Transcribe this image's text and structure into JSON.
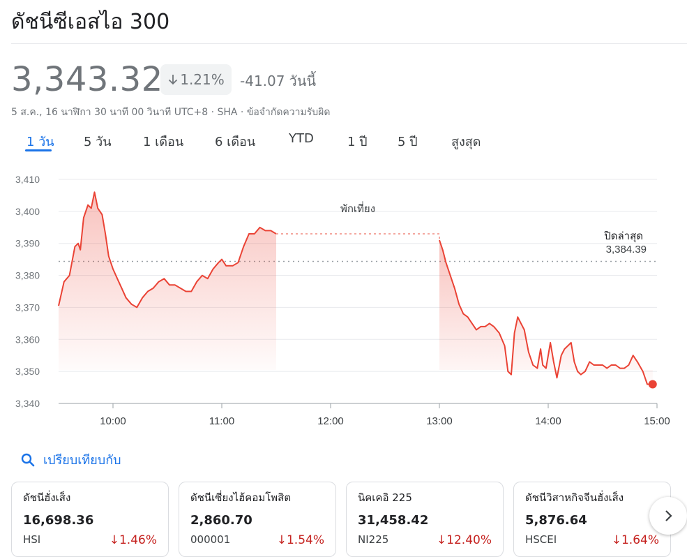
{
  "header": {
    "title": "ดัชนีซีเอสไอ 300"
  },
  "quote": {
    "price": "3,343.32",
    "change_pct": "1.21%",
    "change_abs": "-41.07",
    "change_period": "วันนี้",
    "meta": "5 ส.ค., 16 นาฬิกา 30 นาที 00 วินาที UTC+8 · SHA · ข้อจำกัดความรับผิด"
  },
  "tabs": [
    {
      "label": "1 วัน",
      "active": true
    },
    {
      "label": "5 วัน"
    },
    {
      "label": "1 เดือน"
    },
    {
      "label": "6 เดือน"
    },
    {
      "label": "YTD"
    },
    {
      "label": "1 ปี"
    },
    {
      "label": "5 ปี"
    },
    {
      "label": "สูงสุด"
    }
  ],
  "chart_data": {
    "type": "line",
    "ylim": [
      3340,
      3410
    ],
    "y_ticks": [
      "3,410",
      "3,400",
      "3,390",
      "3,380",
      "3,370",
      "3,360",
      "3,350",
      "3,340"
    ],
    "y_tick_values": [
      3410,
      3400,
      3390,
      3380,
      3370,
      3360,
      3350,
      3340
    ],
    "x_ticks": [
      "10:00",
      "11:00",
      "12:00",
      "13:00",
      "14:00",
      "15:00"
    ],
    "x_tick_values": [
      10,
      11,
      12,
      13,
      14,
      15
    ],
    "xlim": [
      9.5,
      15
    ],
    "lunch_label": "พักเที่ยง",
    "prev_close_label": "ปิดล่าสุด",
    "prev_close_value_label": "3,384.39",
    "prev_close": 3384.39,
    "line_color": "#ea4335",
    "morning": [
      [
        9.5,
        3370.5
      ],
      [
        9.55,
        3378
      ],
      [
        9.6,
        3380
      ],
      [
        9.65,
        3389
      ],
      [
        9.68,
        3390
      ],
      [
        9.7,
        3388
      ],
      [
        9.73,
        3398
      ],
      [
        9.77,
        3402
      ],
      [
        9.8,
        3401
      ],
      [
        9.83,
        3406
      ],
      [
        9.86,
        3401
      ],
      [
        9.9,
        3399
      ],
      [
        9.93,
        3393
      ],
      [
        9.96,
        3386
      ],
      [
        10.0,
        3382
      ],
      [
        10.04,
        3379
      ],
      [
        10.08,
        3376
      ],
      [
        10.12,
        3373
      ],
      [
        10.17,
        3371
      ],
      [
        10.22,
        3370
      ],
      [
        10.27,
        3373
      ],
      [
        10.32,
        3375
      ],
      [
        10.37,
        3376
      ],
      [
        10.42,
        3378
      ],
      [
        10.47,
        3379
      ],
      [
        10.52,
        3377
      ],
      [
        10.57,
        3377
      ],
      [
        10.62,
        3376
      ],
      [
        10.67,
        3375
      ],
      [
        10.72,
        3375
      ],
      [
        10.77,
        3378
      ],
      [
        10.82,
        3380
      ],
      [
        10.87,
        3379
      ],
      [
        10.92,
        3382
      ],
      [
        10.97,
        3384
      ],
      [
        11.0,
        3385
      ],
      [
        11.04,
        3383
      ],
      [
        11.1,
        3383
      ],
      [
        11.15,
        3384
      ],
      [
        11.2,
        3389
      ],
      [
        11.25,
        3393
      ],
      [
        11.3,
        3393
      ],
      [
        11.35,
        3395
      ],
      [
        11.4,
        3394
      ],
      [
        11.45,
        3394
      ],
      [
        11.5,
        3393
      ]
    ],
    "afternoon": [
      [
        13.0,
        3391
      ],
      [
        13.03,
        3388
      ],
      [
        13.06,
        3384
      ],
      [
        13.1,
        3380
      ],
      [
        13.14,
        3376
      ],
      [
        13.18,
        3371
      ],
      [
        13.22,
        3368
      ],
      [
        13.26,
        3367
      ],
      [
        13.3,
        3365
      ],
      [
        13.34,
        3363
      ],
      [
        13.38,
        3364
      ],
      [
        13.42,
        3364
      ],
      [
        13.46,
        3365
      ],
      [
        13.5,
        3364
      ],
      [
        13.55,
        3362
      ],
      [
        13.6,
        3358
      ],
      [
        13.63,
        3350
      ],
      [
        13.66,
        3349
      ],
      [
        13.69,
        3362
      ],
      [
        13.72,
        3367
      ],
      [
        13.75,
        3365
      ],
      [
        13.78,
        3363
      ],
      [
        13.82,
        3356
      ],
      [
        13.86,
        3352
      ],
      [
        13.9,
        3351
      ],
      [
        13.93,
        3357
      ],
      [
        13.95,
        3352
      ],
      [
        13.98,
        3351
      ],
      [
        14.02,
        3359
      ],
      [
        14.05,
        3353
      ],
      [
        14.08,
        3348
      ],
      [
        14.12,
        3355
      ],
      [
        14.15,
        3357
      ],
      [
        14.18,
        3358
      ],
      [
        14.21,
        3359
      ],
      [
        14.24,
        3353
      ],
      [
        14.27,
        3350
      ],
      [
        14.3,
        3349
      ],
      [
        14.34,
        3350
      ],
      [
        14.38,
        3353
      ],
      [
        14.42,
        3352
      ],
      [
        14.46,
        3352
      ],
      [
        14.5,
        3352
      ],
      [
        14.54,
        3351
      ],
      [
        14.58,
        3352
      ],
      [
        14.62,
        3352
      ],
      [
        14.66,
        3351
      ],
      [
        14.7,
        3351
      ],
      [
        14.74,
        3352
      ],
      [
        14.78,
        3355
      ],
      [
        14.82,
        3353
      ],
      [
        14.87,
        3350
      ],
      [
        14.91,
        3346
      ],
      [
        14.96,
        3346
      ]
    ]
  },
  "compare": {
    "label": "เปรียบเทียบกับ"
  },
  "cards": [
    {
      "name": "ดัชนีฮั่งเส็ง",
      "value": "16,698.36",
      "symbol": "HSI",
      "change": "1.46%"
    },
    {
      "name": "ดัชนีเซี่ยงไฮ้คอมโพสิต",
      "value": "2,860.70",
      "symbol": "000001",
      "change": "1.54%"
    },
    {
      "name": "นิคเคอิ 225",
      "value": "31,458.42",
      "symbol": "NI225",
      "change": "12.40%"
    },
    {
      "name": "ดัชนีวิสาหกิจจีนฮั่งเส็ง",
      "value": "5,876.64",
      "symbol": "HSCEI",
      "change": "1.64%"
    }
  ],
  "colors": {
    "accent": "#1a73e8",
    "negative": "#c5221f",
    "line": "#ea4335"
  },
  "icons": {
    "change_arrow": "arrow-down-icon",
    "compare": "search-icon",
    "next": "chevron-right-icon"
  }
}
